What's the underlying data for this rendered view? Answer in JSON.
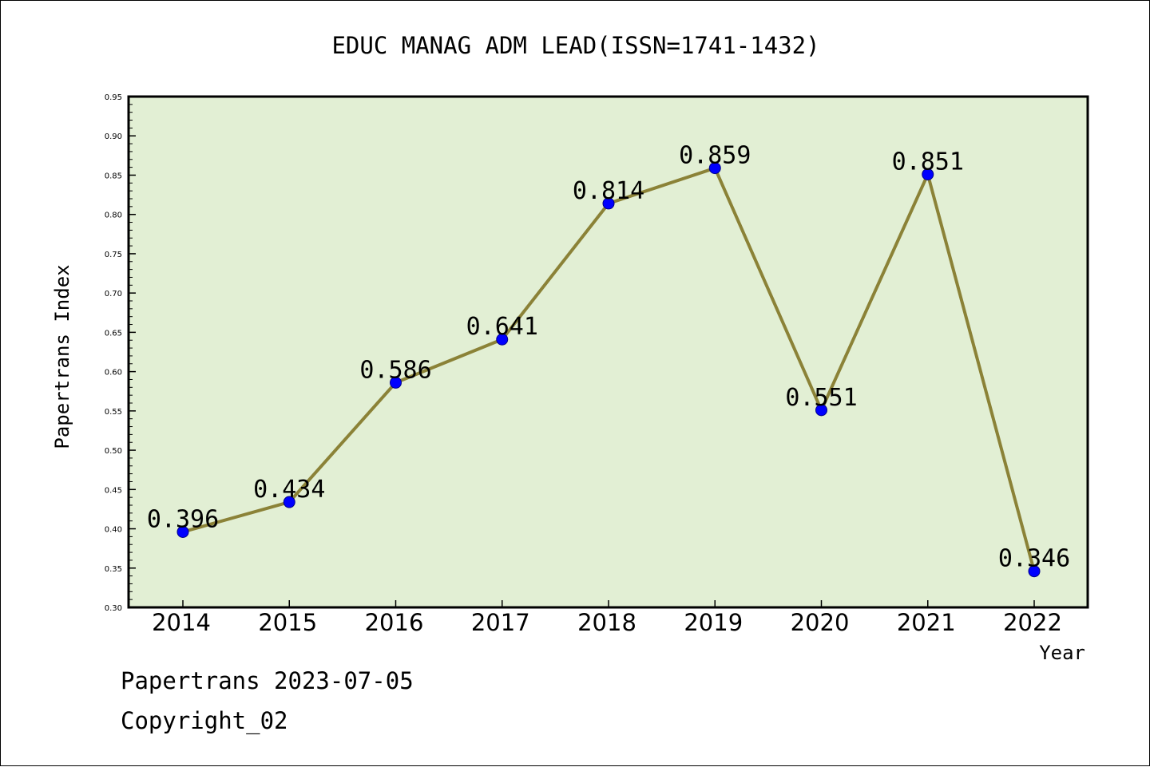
{
  "chart_data": {
    "type": "line",
    "title": "EDUC MANAG ADM LEAD(ISSN=1741-1432)",
    "xlabel": "Year",
    "ylabel": "Papertrans Index",
    "categories": [
      "2014",
      "2015",
      "2016",
      "2017",
      "2018",
      "2019",
      "2020",
      "2021",
      "2022"
    ],
    "values": [
      0.396,
      0.434,
      0.586,
      0.641,
      0.814,
      0.859,
      0.551,
      0.851,
      0.346
    ],
    "data_labels": [
      "0.396",
      "0.434",
      "0.586",
      "0.641",
      "0.814",
      "0.859",
      "0.551",
      "0.851",
      "0.346"
    ],
    "ylim": [
      0.3,
      0.95
    ],
    "yticks": [
      "0.30",
      "0.35",
      "0.40",
      "0.45",
      "0.50",
      "0.55",
      "0.60",
      "0.65",
      "0.70",
      "0.75",
      "0.80",
      "0.85",
      "0.90",
      "0.95"
    ],
    "grid": false,
    "colors": {
      "plot_background": "#e2efd4",
      "line": "#8b8237",
      "marker": "#0000ff"
    }
  },
  "footer": {
    "date_line": "Papertrans 2023-07-05",
    "copyright": "Copyright_02"
  }
}
